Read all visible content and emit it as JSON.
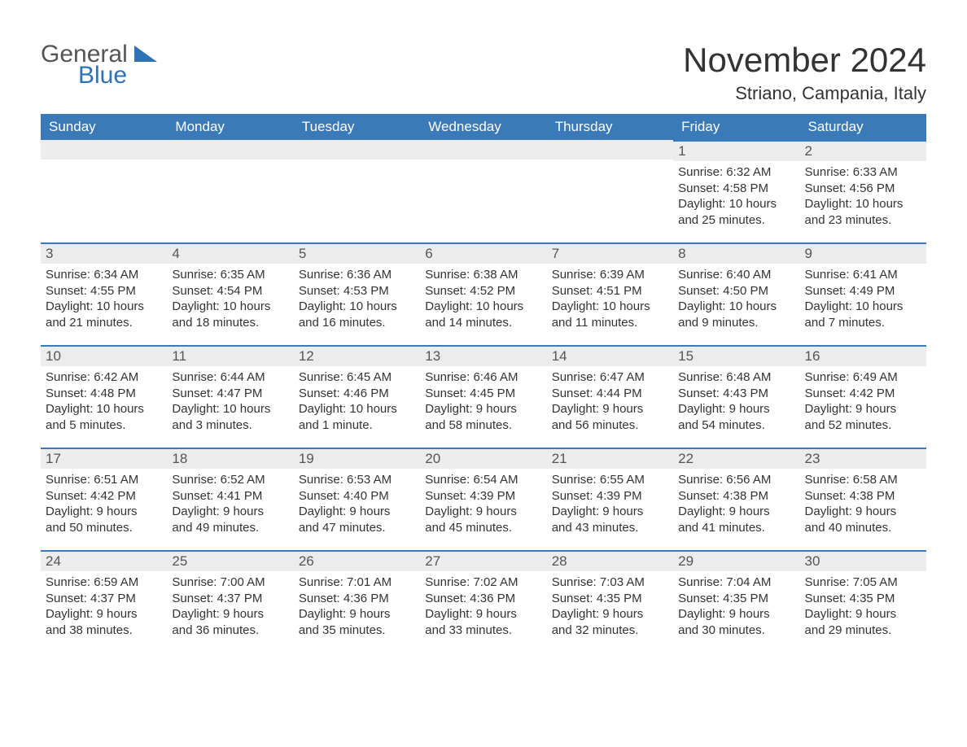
{
  "logo": {
    "text_general": "General",
    "text_blue": "Blue",
    "shape_color": "#2d73b6"
  },
  "header": {
    "month_title": "November 2024",
    "location": "Striano, Campania, Italy"
  },
  "colors": {
    "header_bg": "#3a7ab8",
    "header_text": "#ffffff",
    "daynum_bg": "#ececec",
    "daynum_border": "#3a7ab8",
    "body_text": "#333333",
    "page_bg": "#ffffff"
  },
  "day_headers": [
    "Sunday",
    "Monday",
    "Tuesday",
    "Wednesday",
    "Thursday",
    "Friday",
    "Saturday"
  ],
  "weeks": [
    [
      null,
      null,
      null,
      null,
      null,
      {
        "num": "1",
        "sunrise": "Sunrise: 6:32 AM",
        "sunset": "Sunset: 4:58 PM",
        "daylight1": "Daylight: 10 hours",
        "daylight2": "and 25 minutes."
      },
      {
        "num": "2",
        "sunrise": "Sunrise: 6:33 AM",
        "sunset": "Sunset: 4:56 PM",
        "daylight1": "Daylight: 10 hours",
        "daylight2": "and 23 minutes."
      }
    ],
    [
      {
        "num": "3",
        "sunrise": "Sunrise: 6:34 AM",
        "sunset": "Sunset: 4:55 PM",
        "daylight1": "Daylight: 10 hours",
        "daylight2": "and 21 minutes."
      },
      {
        "num": "4",
        "sunrise": "Sunrise: 6:35 AM",
        "sunset": "Sunset: 4:54 PM",
        "daylight1": "Daylight: 10 hours",
        "daylight2": "and 18 minutes."
      },
      {
        "num": "5",
        "sunrise": "Sunrise: 6:36 AM",
        "sunset": "Sunset: 4:53 PM",
        "daylight1": "Daylight: 10 hours",
        "daylight2": "and 16 minutes."
      },
      {
        "num": "6",
        "sunrise": "Sunrise: 6:38 AM",
        "sunset": "Sunset: 4:52 PM",
        "daylight1": "Daylight: 10 hours",
        "daylight2": "and 14 minutes."
      },
      {
        "num": "7",
        "sunrise": "Sunrise: 6:39 AM",
        "sunset": "Sunset: 4:51 PM",
        "daylight1": "Daylight: 10 hours",
        "daylight2": "and 11 minutes."
      },
      {
        "num": "8",
        "sunrise": "Sunrise: 6:40 AM",
        "sunset": "Sunset: 4:50 PM",
        "daylight1": "Daylight: 10 hours",
        "daylight2": "and 9 minutes."
      },
      {
        "num": "9",
        "sunrise": "Sunrise: 6:41 AM",
        "sunset": "Sunset: 4:49 PM",
        "daylight1": "Daylight: 10 hours",
        "daylight2": "and 7 minutes."
      }
    ],
    [
      {
        "num": "10",
        "sunrise": "Sunrise: 6:42 AM",
        "sunset": "Sunset: 4:48 PM",
        "daylight1": "Daylight: 10 hours",
        "daylight2": "and 5 minutes."
      },
      {
        "num": "11",
        "sunrise": "Sunrise: 6:44 AM",
        "sunset": "Sunset: 4:47 PM",
        "daylight1": "Daylight: 10 hours",
        "daylight2": "and 3 minutes."
      },
      {
        "num": "12",
        "sunrise": "Sunrise: 6:45 AM",
        "sunset": "Sunset: 4:46 PM",
        "daylight1": "Daylight: 10 hours",
        "daylight2": "and 1 minute."
      },
      {
        "num": "13",
        "sunrise": "Sunrise: 6:46 AM",
        "sunset": "Sunset: 4:45 PM",
        "daylight1": "Daylight: 9 hours",
        "daylight2": "and 58 minutes."
      },
      {
        "num": "14",
        "sunrise": "Sunrise: 6:47 AM",
        "sunset": "Sunset: 4:44 PM",
        "daylight1": "Daylight: 9 hours",
        "daylight2": "and 56 minutes."
      },
      {
        "num": "15",
        "sunrise": "Sunrise: 6:48 AM",
        "sunset": "Sunset: 4:43 PM",
        "daylight1": "Daylight: 9 hours",
        "daylight2": "and 54 minutes."
      },
      {
        "num": "16",
        "sunrise": "Sunrise: 6:49 AM",
        "sunset": "Sunset: 4:42 PM",
        "daylight1": "Daylight: 9 hours",
        "daylight2": "and 52 minutes."
      }
    ],
    [
      {
        "num": "17",
        "sunrise": "Sunrise: 6:51 AM",
        "sunset": "Sunset: 4:42 PM",
        "daylight1": "Daylight: 9 hours",
        "daylight2": "and 50 minutes."
      },
      {
        "num": "18",
        "sunrise": "Sunrise: 6:52 AM",
        "sunset": "Sunset: 4:41 PM",
        "daylight1": "Daylight: 9 hours",
        "daylight2": "and 49 minutes."
      },
      {
        "num": "19",
        "sunrise": "Sunrise: 6:53 AM",
        "sunset": "Sunset: 4:40 PM",
        "daylight1": "Daylight: 9 hours",
        "daylight2": "and 47 minutes."
      },
      {
        "num": "20",
        "sunrise": "Sunrise: 6:54 AM",
        "sunset": "Sunset: 4:39 PM",
        "daylight1": "Daylight: 9 hours",
        "daylight2": "and 45 minutes."
      },
      {
        "num": "21",
        "sunrise": "Sunrise: 6:55 AM",
        "sunset": "Sunset: 4:39 PM",
        "daylight1": "Daylight: 9 hours",
        "daylight2": "and 43 minutes."
      },
      {
        "num": "22",
        "sunrise": "Sunrise: 6:56 AM",
        "sunset": "Sunset: 4:38 PM",
        "daylight1": "Daylight: 9 hours",
        "daylight2": "and 41 minutes."
      },
      {
        "num": "23",
        "sunrise": "Sunrise: 6:58 AM",
        "sunset": "Sunset: 4:38 PM",
        "daylight1": "Daylight: 9 hours",
        "daylight2": "and 40 minutes."
      }
    ],
    [
      {
        "num": "24",
        "sunrise": "Sunrise: 6:59 AM",
        "sunset": "Sunset: 4:37 PM",
        "daylight1": "Daylight: 9 hours",
        "daylight2": "and 38 minutes."
      },
      {
        "num": "25",
        "sunrise": "Sunrise: 7:00 AM",
        "sunset": "Sunset: 4:37 PM",
        "daylight1": "Daylight: 9 hours",
        "daylight2": "and 36 minutes."
      },
      {
        "num": "26",
        "sunrise": "Sunrise: 7:01 AM",
        "sunset": "Sunset: 4:36 PM",
        "daylight1": "Daylight: 9 hours",
        "daylight2": "and 35 minutes."
      },
      {
        "num": "27",
        "sunrise": "Sunrise: 7:02 AM",
        "sunset": "Sunset: 4:36 PM",
        "daylight1": "Daylight: 9 hours",
        "daylight2": "and 33 minutes."
      },
      {
        "num": "28",
        "sunrise": "Sunrise: 7:03 AM",
        "sunset": "Sunset: 4:35 PM",
        "daylight1": "Daylight: 9 hours",
        "daylight2": "and 32 minutes."
      },
      {
        "num": "29",
        "sunrise": "Sunrise: 7:04 AM",
        "sunset": "Sunset: 4:35 PM",
        "daylight1": "Daylight: 9 hours",
        "daylight2": "and 30 minutes."
      },
      {
        "num": "30",
        "sunrise": "Sunrise: 7:05 AM",
        "sunset": "Sunset: 4:35 PM",
        "daylight1": "Daylight: 9 hours",
        "daylight2": "and 29 minutes."
      }
    ]
  ]
}
